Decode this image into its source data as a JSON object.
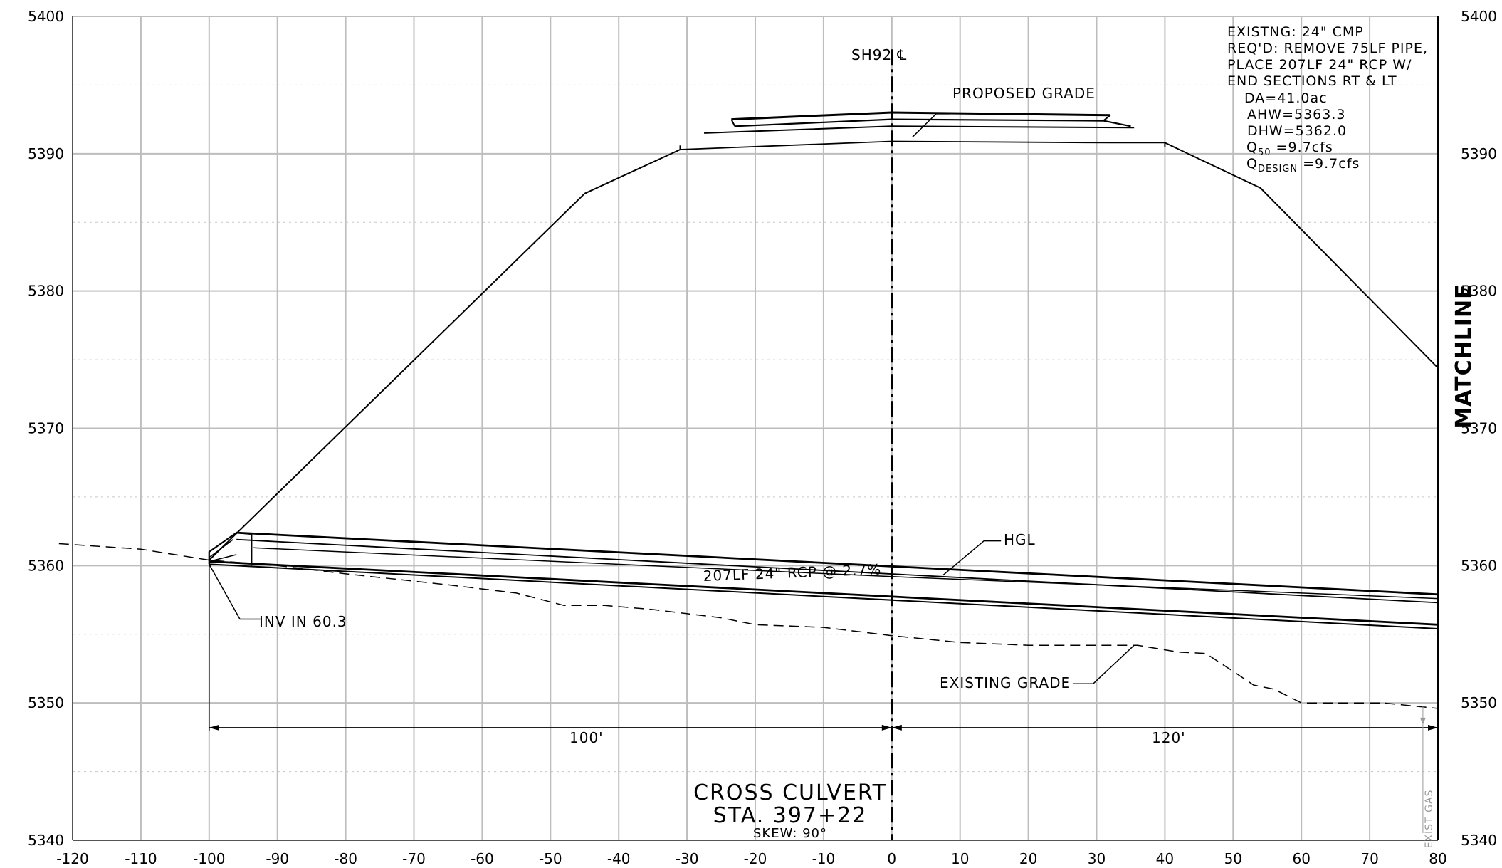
{
  "axes": {
    "x_ticks": [
      -120,
      -110,
      -100,
      -90,
      -80,
      -70,
      -60,
      -50,
      -40,
      -30,
      -20,
      -10,
      0,
      10,
      20,
      30,
      40,
      50,
      60,
      70,
      80
    ],
    "y_ticks": [
      5340,
      5350,
      5360,
      5370,
      5380,
      5390,
      5400
    ],
    "x_range": [
      -120,
      80
    ],
    "y_range": [
      5340,
      5400
    ],
    "grid": true
  },
  "labels": {
    "centerline": "SH92 ℄",
    "proposed_grade": "PROPOSED GRADE",
    "hgl": "HGL",
    "pipe": "207LF 24\" RCP @ 2.7%",
    "inv_in": "INV IN 60.3",
    "existing_grade": "EXISTING GRADE",
    "dim_left": "100'",
    "dim_right": "120'",
    "matchline": "MATCHLINE",
    "exist_gas": "EXIST GAS"
  },
  "notes": {
    "line1": "EXISTNG: 24\" CMP",
    "line2": "REQ'D: REMOVE 75LF PIPE,",
    "line3": "PLACE 207LF 24\" RCP W/",
    "line4": "END SECTIONS RT & LT",
    "da": "DA=41.0ac",
    "ahw": "AHW=5363.3",
    "dhw": "DHW=5362.0",
    "q50_sym": "Q",
    "q50_sub": "50",
    "q50_val": " =9.7cfs",
    "qd_sym": "Q",
    "qd_sub": "DESIGN",
    "qd_val": " =9.7cfs"
  },
  "title": {
    "line1": "CROSS CULVERT",
    "line2": "STA. 397+22",
    "line3": "SKEW: 90°"
  },
  "geometry_data": {
    "existing_grade": [
      [
        -122,
        5361.6
      ],
      [
        -110,
        5361.2
      ],
      [
        -100,
        5360.4
      ],
      [
        -90,
        5360
      ],
      [
        -80,
        5359.4
      ],
      [
        -65,
        5358.6
      ],
      [
        -55,
        5358
      ],
      [
        -48,
        5357.1
      ],
      [
        -42,
        5357.1
      ],
      [
        -35,
        5356.8
      ],
      [
        -25,
        5356.2
      ],
      [
        -20,
        5355.7
      ],
      [
        -10,
        5355.5
      ],
      [
        0,
        5354.9
      ],
      [
        10,
        5354.4
      ],
      [
        20,
        5354.2
      ],
      [
        30,
        5354.2
      ],
      [
        36,
        5354.2
      ],
      [
        42,
        5353.7
      ],
      [
        46,
        5353.6
      ],
      [
        50,
        5352.3
      ],
      [
        53,
        5351.3
      ],
      [
        56,
        5351
      ],
      [
        60,
        5350
      ],
      [
        72,
        5350
      ],
      [
        80,
        5349.6
      ]
    ],
    "embankment": [
      [
        -100,
        5360.4
      ],
      [
        -45,
        5387.1
      ],
      [
        -31,
        5390.3
      ]
    ],
    "embankment_right": [
      [
        40,
        5390.8
      ],
      [
        54,
        5387.5
      ],
      [
        80,
        5374.4
      ]
    ],
    "pavement_top": [
      [
        -23.5,
        5392.5
      ],
      [
        0,
        5393
      ],
      [
        32,
        5392.8
      ]
    ],
    "pavement_mid": [
      [
        -23,
        5392
      ],
      [
        0,
        5392.5
      ],
      [
        31,
        5392.4
      ],
      [
        35,
        5392
      ]
    ],
    "pavement_base": [
      [
        -27.5,
        5391.5
      ],
      [
        0,
        5392
      ],
      [
        35.5,
        5391.9
      ]
    ],
    "subgrade": [
      [
        -31,
        5390.3
      ],
      [
        0,
        5390.9
      ],
      [
        32,
        5390.8
      ],
      [
        40,
        5390.8
      ]
    ],
    "pipe_top_outer": [
      [
        -96,
        5362.4
      ],
      [
        80,
        5357.9
      ]
    ],
    "pipe_top_inner": [
      [
        -96,
        5361.9
      ],
      [
        80,
        5357.3
      ]
    ],
    "hgl": [
      [
        -93.5,
        5361.3
      ],
      [
        0,
        5359.2
      ],
      [
        80,
        5357.6
      ]
    ],
    "pipe_inv_upper": [
      [
        -100,
        5360.3
      ],
      [
        80,
        5355.7
      ]
    ],
    "pipe_inv_lower": [
      [
        -100,
        5360.1
      ],
      [
        80,
        5355.4
      ]
    ]
  },
  "colors": {
    "ink": "#000000",
    "grid": "#bdbdbd",
    "grid_minor": "#c8c8c8"
  }
}
